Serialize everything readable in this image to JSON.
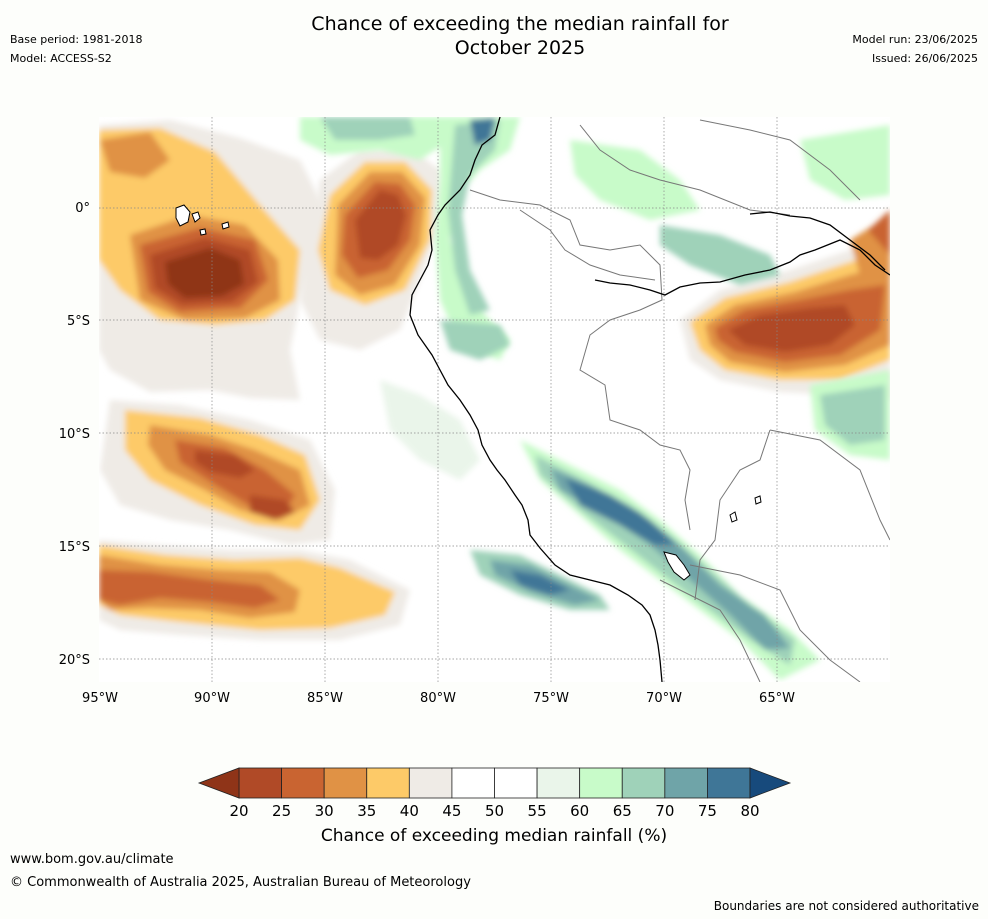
{
  "header": {
    "title_line1": "Chance of exceeding the median rainfall for",
    "title_line2": "October 2025",
    "base_period": "Base period: 1981-2018",
    "model": "Model: ACCESS-S2",
    "model_run": "Model run: 23/06/2025",
    "issued": "Issued: 26/06/2025"
  },
  "map": {
    "lat_labels": [
      "0°",
      "5°S",
      "10°S",
      "15°S",
      "20°S"
    ],
    "lon_labels": [
      "95°W",
      "90°W",
      "85°W",
      "80°W",
      "75°W",
      "70°W",
      "65°W"
    ],
    "colors": {
      "lt20": "#8f3418",
      "20-25": "#b04a27",
      "25-30": "#c96431",
      "30-35": "#e09245",
      "35-40": "#fdca68",
      "40-45": "#efebe6",
      "45-55": "#ffffff",
      "55-60": "#eaf5ea",
      "60-65": "#c8fbc9",
      "65-70": "#9fd2b9",
      "70-75": "#6fa4a8",
      "75-80": "#3f7697",
      "gt80": "#174a7c"
    }
  },
  "colorbar": {
    "ticks": [
      "20",
      "25",
      "30",
      "35",
      "40",
      "45",
      "50",
      "55",
      "60",
      "65",
      "70",
      "75",
      "80"
    ],
    "colors": [
      "#b04a27",
      "#c96431",
      "#e09245",
      "#fdca68",
      "#efebe6",
      "#ffffff",
      "#ffffff",
      "#eaf5ea",
      "#c8fbc9",
      "#9fd2b9",
      "#6fa4a8",
      "#3f7697"
    ],
    "low_color": "#8f3418",
    "high_color": "#174a7c",
    "label": "Chance of exceeding median rainfall (%)"
  },
  "footer": {
    "url": "www.bom.gov.au/climate",
    "copyright": "© Commonwealth of Australia 2025, Australian Bureau of Meteorology",
    "note": "Boundaries are not considered authoritative"
  }
}
